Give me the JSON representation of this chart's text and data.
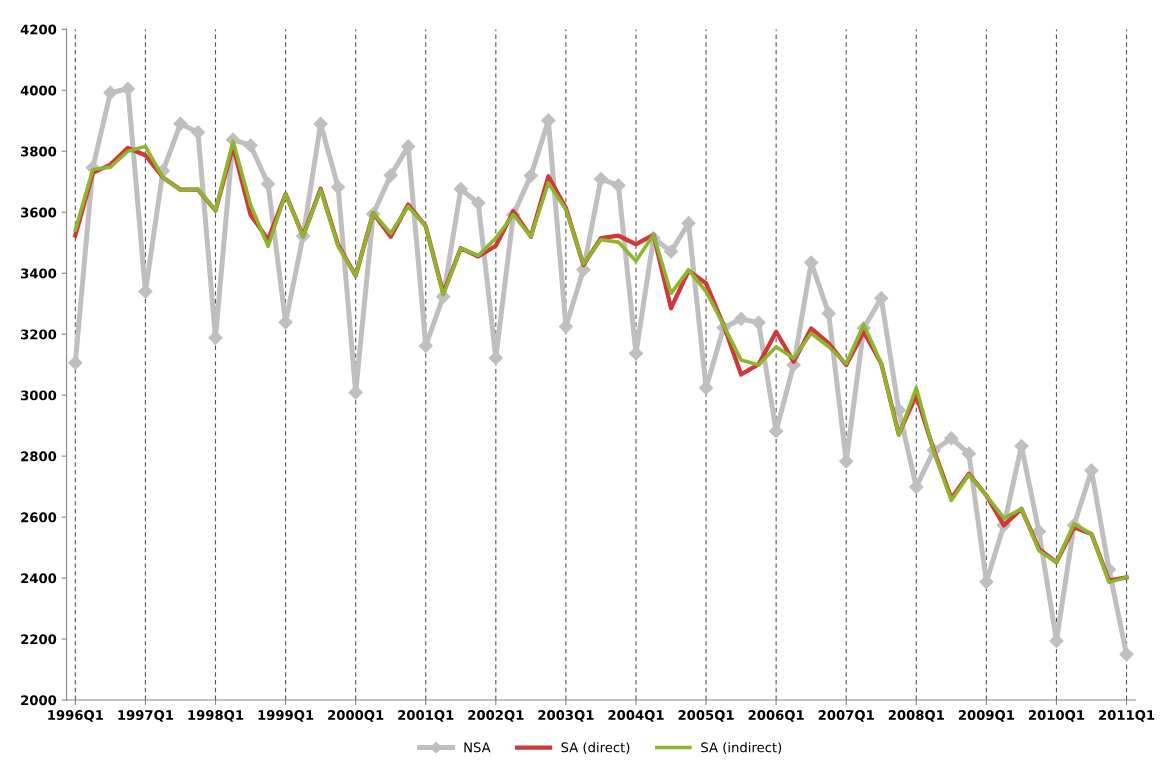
{
  "chart_data": {
    "type": "line",
    "categories": [
      "1996Q1",
      null,
      null,
      null,
      "1997Q1",
      null,
      null,
      null,
      "1998Q1",
      null,
      null,
      null,
      "1999Q1",
      null,
      null,
      null,
      "2000Q1",
      null,
      null,
      null,
      "2001Q1",
      null,
      null,
      null,
      "2002Q1",
      null,
      null,
      null,
      "2003Q1",
      null,
      null,
      null,
      "2004Q1",
      null,
      null,
      null,
      "2005Q1",
      null,
      null,
      null,
      "2006Q1",
      null,
      null,
      null,
      "2007Q1",
      null,
      null,
      null,
      "2008Q1",
      null,
      null,
      null,
      "2009Q1",
      null,
      null,
      null,
      "2010Q1",
      null,
      null,
      null,
      "2011Q1"
    ],
    "series": [
      {
        "name": "NSA",
        "color": "#bfbfbf",
        "marker": "diamond",
        "values": [
          3106,
          3746,
          3992,
          4005,
          3340,
          3736,
          3890,
          3862,
          3188,
          3838,
          3819,
          3693,
          3239,
          3522,
          3890,
          3682,
          3009,
          3594,
          3721,
          3816,
          3162,
          3323,
          3676,
          3630,
          3122,
          3592,
          3720,
          3901,
          3225,
          3411,
          3709,
          3688,
          3137,
          3515,
          3471,
          3564,
          3024,
          3221,
          3250,
          3238,
          2882,
          3099,
          3435,
          3268,
          2783,
          3220,
          3318,
          2951,
          2699,
          2819,
          2858,
          2808,
          2388,
          2573,
          2833,
          2553,
          2194,
          2573,
          2753,
          2428,
          2150
        ]
      },
      {
        "name": "SA (direct)",
        "color": "#d0393a",
        "marker": "none",
        "values": [
          3524,
          3729,
          3756,
          3811,
          3787,
          3714,
          3674,
          3674,
          3605,
          3816,
          3592,
          3510,
          3660,
          3522,
          3677,
          3493,
          3392,
          3597,
          3520,
          3625,
          3554,
          3334,
          3482,
          3455,
          3490,
          3603,
          3520,
          3718,
          3614,
          3427,
          3515,
          3523,
          3495,
          3526,
          3285,
          3408,
          3367,
          3230,
          3068,
          3101,
          3208,
          3110,
          3219,
          3170,
          3099,
          3208,
          3104,
          2872,
          3000,
          2819,
          2662,
          2742,
          2671,
          2573,
          2627,
          2496,
          2452,
          2567,
          2545,
          2392,
          2403
        ]
      },
      {
        "name": "SA (indirect)",
        "color": "#8db52e",
        "marker": "none",
        "values": [
          3542,
          3740,
          3748,
          3800,
          3816,
          3714,
          3672,
          3676,
          3605,
          3833,
          3625,
          3488,
          3660,
          3520,
          3674,
          3488,
          3392,
          3597,
          3531,
          3619,
          3554,
          3329,
          3482,
          3458,
          3515,
          3592,
          3520,
          3696,
          3608,
          3430,
          3510,
          3502,
          3440,
          3526,
          3334,
          3411,
          3340,
          3230,
          3115,
          3099,
          3159,
          3121,
          3203,
          3159,
          3104,
          3232,
          3104,
          2868,
          3024,
          2814,
          2655,
          2739,
          2671,
          2597,
          2627,
          2490,
          2452,
          2578,
          2545,
          2386,
          2403
        ]
      }
    ],
    "ylim": [
      2000,
      4200
    ],
    "yticks": [
      2000,
      2200,
      2400,
      2600,
      2800,
      3000,
      3200,
      3400,
      3600,
      3800,
      4000,
      4200
    ],
    "grid": "x",
    "legend": "bottom"
  }
}
